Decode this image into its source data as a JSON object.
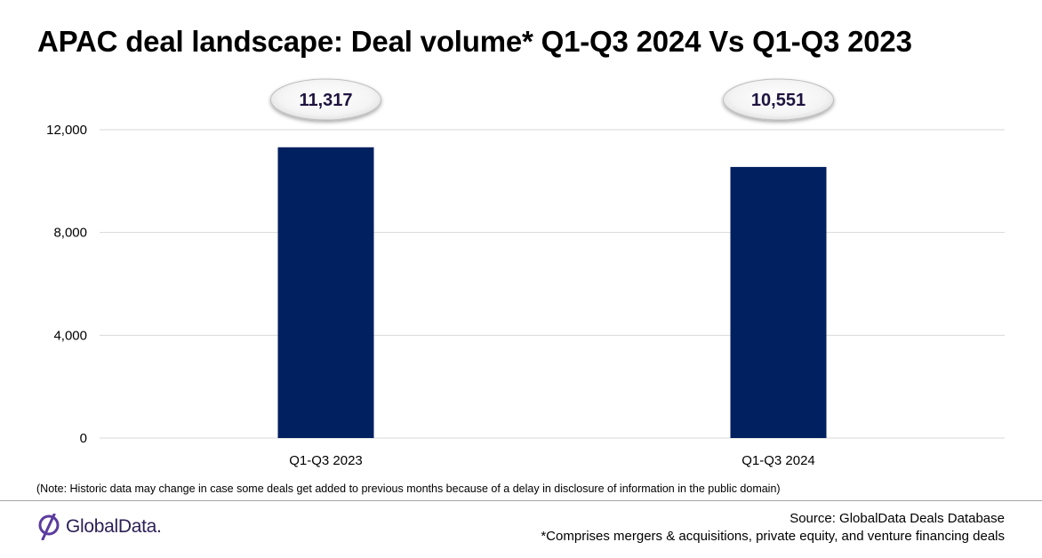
{
  "title": "APAC deal landscape: Deal volume* Q1-Q3 2024 Vs Q1-Q3 2023",
  "note": "(Note: Historic data may change in case some deals get added to previous months because of a delay in disclosure of information in the public domain)",
  "footer": {
    "source": "Source: GlobalData Deals Database",
    "footnote": "*Comprises mergers & acquisitions, private equity, and venture financing deals"
  },
  "logo": {
    "name": "GlobalData.",
    "icon": "globaldata-logo-icon"
  },
  "colors": {
    "bar": "#002060",
    "label_text": "#1f1440",
    "grid": "#d9d9d9",
    "axis": "#d9d9d9"
  },
  "chart_data": {
    "type": "bar",
    "categories": [
      "Q1-Q3 2023",
      "Q1-Q3 2024"
    ],
    "values": [
      11317,
      10551
    ],
    "value_labels": [
      "11,317",
      "10,551"
    ],
    "ylim": [
      0,
      12000
    ],
    "yticks": [
      0,
      4000,
      8000,
      12000
    ],
    "ytick_labels": [
      "0",
      "4,000",
      "8,000",
      "12,000"
    ],
    "grid": true,
    "legend": "none",
    "xlabel": "",
    "ylabel": ""
  }
}
